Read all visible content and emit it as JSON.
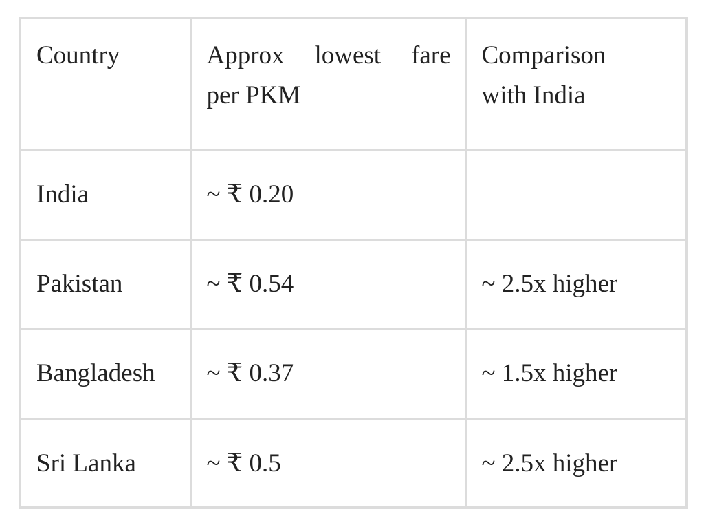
{
  "table": {
    "headers": {
      "country": "Country",
      "fare_line1": "Approx lowest fare",
      "fare_line2": "per PKM",
      "comparison_line1": "Comparison",
      "comparison_line2": "with India"
    },
    "rows": [
      {
        "country": "India",
        "fare": "~ ₹ 0.20",
        "comparison": ""
      },
      {
        "country": "Pakistan",
        "fare": "~ ₹ 0.54",
        "comparison": "~ 2.5x higher"
      },
      {
        "country": "Bangladesh",
        "fare": "~ ₹ 0.37",
        "comparison": "~ 1.5x higher"
      },
      {
        "country": "Sri Lanka",
        "fare": "~ ₹ 0.5",
        "comparison": "~ 2.5x higher"
      }
    ]
  }
}
